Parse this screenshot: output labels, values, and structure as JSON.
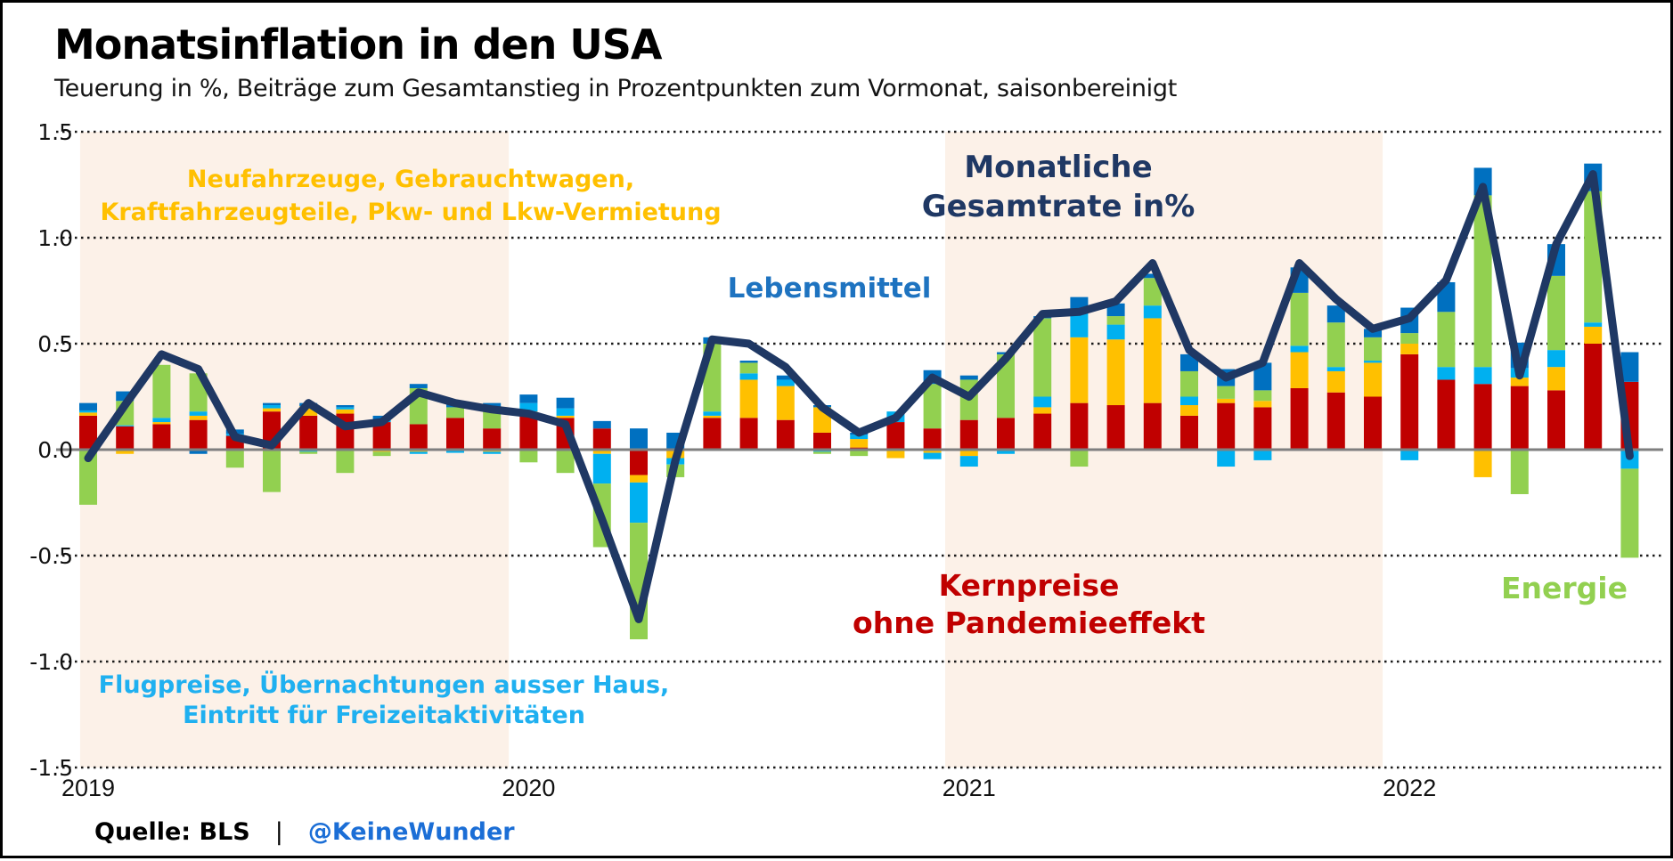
{
  "title": "Monatsinflation in den USA",
  "subtitle": "Teuerung in %, Beiträge zum Gesamtanstieg in Prozentpunkten zum Vormonat, saisonbereinigt",
  "footer": {
    "source_label": "Quelle: BLS",
    "separator": "|",
    "handle": "@KeineWunder"
  },
  "annotations": {
    "vehicles": {
      "line1": "Neufahrzeuge, Gebrauchtwagen,",
      "line2": "Kraftfahrzeugteile, Pkw- und Lkw-Vermietung",
      "color": "#ffc000"
    },
    "total_rate": {
      "line1": "Monatliche",
      "line2": "Gesamtrate in%",
      "color": "#1f3864"
    },
    "food": {
      "label": "Lebensmittel",
      "color": "#1e73c0"
    },
    "core": {
      "line1": "Kernpreise",
      "line2": "ohne Pandemieeffekt",
      "color": "#c00000"
    },
    "energy": {
      "label": "Energie",
      "color": "#92d050"
    },
    "travel": {
      "line1": "Flugpreise, Übernachtungen ausser Haus,",
      "line2": "Eintritt für Freizeitaktivitäten",
      "color": "#00b0f0"
    }
  },
  "palette": {
    "core_red": "#c00000",
    "vehicles_yellow": "#ffc000",
    "travel_skyblue": "#00b0f0",
    "energy_green": "#92d050",
    "food_blue": "#0070c0",
    "total_line_navy": "#1f3864",
    "shade_peach": "#fcf1e8",
    "zero_axis_gray": "#7f7f7f"
  },
  "chart_data": {
    "type": "bar",
    "subtype": "stacked monthly contribution bars with total line",
    "title": "Monatsinflation in den USA",
    "xlabel": "",
    "ylabel": "Teuerung in %",
    "ylim": [
      -1.5,
      1.5
    ],
    "y_ticks": [
      1.5,
      1.0,
      0.5,
      0.0,
      -0.5,
      -1.0,
      -1.5
    ],
    "x_tick_labels": [
      "2019",
      "2020",
      "2021",
      "2022"
    ],
    "x_tick_month_index": [
      0,
      12,
      24,
      36
    ],
    "grid": "dotted horizontal",
    "legend_position": "annotations in plot",
    "months": [
      "2019-01",
      "2019-02",
      "2019-03",
      "2019-04",
      "2019-05",
      "2019-06",
      "2019-07",
      "2019-08",
      "2019-09",
      "2019-10",
      "2019-11",
      "2019-12",
      "2020-01",
      "2020-02",
      "2020-03",
      "2020-04",
      "2020-05",
      "2020-06",
      "2020-07",
      "2020-08",
      "2020-09",
      "2020-10",
      "2020-11",
      "2020-12",
      "2021-01",
      "2021-02",
      "2021-03",
      "2021-04",
      "2021-05",
      "2021-06",
      "2021-07",
      "2021-08",
      "2021-09",
      "2021-10",
      "2021-11",
      "2021-12",
      "2022-01",
      "2022-02",
      "2022-03",
      "2022-04",
      "2022-05",
      "2022-06",
      "2022-07"
    ],
    "series": [
      {
        "name": "Kernpreise ohne Pandemieeffekt",
        "color": "#c00000",
        "values": [
          0.16,
          0.11,
          0.12,
          0.14,
          0.065,
          0.18,
          0.16,
          0.17,
          0.13,
          0.12,
          0.15,
          0.1,
          0.17,
          0.15,
          0.1,
          -0.12,
          0.0,
          0.15,
          0.15,
          0.14,
          0.08,
          0.01,
          0.13,
          0.1,
          0.14,
          0.15,
          0.17,
          0.22,
          0.21,
          0.22,
          0.16,
          0.22,
          0.2,
          0.29,
          0.27,
          0.25,
          0.45,
          0.33,
          0.31,
          0.3,
          0.28,
          0.5,
          0.32
        ]
      },
      {
        "name": "Neufahrzeuge, Gebrauchtwagen, Kraftfahrzeugteile, Pkw- und Lkw-Vermietung",
        "color": "#ffc000",
        "values": [
          0.015,
          -0.02,
          0.01,
          0.02,
          0.0,
          0.015,
          0.045,
          0.02,
          -0.01,
          -0.01,
          0.0,
          -0.01,
          0.01,
          0.01,
          -0.02,
          -0.035,
          -0.04,
          0.01,
          0.18,
          0.16,
          0.12,
          0.04,
          -0.04,
          -0.015,
          -0.03,
          0.0,
          0.03,
          0.31,
          0.31,
          0.4,
          0.05,
          0.02,
          0.03,
          0.17,
          0.1,
          0.16,
          0.05,
          0.0,
          -0.13,
          0.04,
          0.11,
          0.08,
          0.0
        ]
      },
      {
        "name": "Flugpreise, Übernachtungen ausser Haus, Eintritt für Freizeitaktivitäten",
        "color": "#00b0f0",
        "values": [
          0.01,
          0.005,
          0.02,
          0.02,
          0.01,
          0.015,
          -0.01,
          0.01,
          0.01,
          -0.01,
          -0.015,
          -0.01,
          0.04,
          0.035,
          -0.14,
          -0.19,
          -0.03,
          0.02,
          0.03,
          0.03,
          -0.01,
          0.02,
          0.05,
          -0.03,
          -0.05,
          -0.02,
          0.05,
          0.13,
          0.07,
          0.06,
          0.04,
          -0.08,
          -0.05,
          0.03,
          0.02,
          0.01,
          -0.05,
          0.06,
          0.08,
          0.045,
          0.08,
          0.02,
          -0.09
        ]
      },
      {
        "name": "Energie",
        "color": "#92d050",
        "values": [
          -0.26,
          0.115,
          0.25,
          0.18,
          -0.085,
          -0.2,
          -0.01,
          -0.11,
          -0.02,
          0.17,
          0.05,
          0.1,
          -0.06,
          -0.11,
          -0.3,
          -0.55,
          -0.06,
          0.32,
          0.05,
          0.0,
          -0.01,
          -0.03,
          0.0,
          0.21,
          0.19,
          0.3,
          0.37,
          -0.08,
          0.04,
          0.13,
          0.12,
          0.06,
          0.05,
          0.25,
          0.21,
          0.11,
          0.05,
          0.26,
          0.81,
          -0.21,
          0.35,
          0.62,
          -0.42
        ]
      },
      {
        "name": "Lebensmittel",
        "color": "#0070c0",
        "values": [
          0.035,
          0.045,
          0.0,
          -0.02,
          0.02,
          0.01,
          0.015,
          0.01,
          0.02,
          0.02,
          0.015,
          0.02,
          0.04,
          0.05,
          0.035,
          0.1,
          0.08,
          0.03,
          0.01,
          0.02,
          0.01,
          0.01,
          0.0,
          0.065,
          0.02,
          0.01,
          0.01,
          0.06,
          0.06,
          0.02,
          0.08,
          0.08,
          0.13,
          0.12,
          0.08,
          0.04,
          0.12,
          0.14,
          0.13,
          0.12,
          0.15,
          0.13,
          0.14
        ]
      }
    ],
    "line_series": {
      "name": "Monatliche Gesamtrate in%",
      "color": "#1f3864",
      "values": [
        -0.04,
        0.21,
        0.45,
        0.38,
        0.06,
        0.02,
        0.22,
        0.11,
        0.13,
        0.27,
        0.22,
        0.19,
        0.17,
        0.12,
        -0.33,
        -0.8,
        -0.05,
        0.52,
        0.5,
        0.39,
        0.2,
        0.08,
        0.15,
        0.34,
        0.25,
        0.43,
        0.64,
        0.65,
        0.7,
        0.88,
        0.47,
        0.34,
        0.41,
        0.88,
        0.71,
        0.57,
        0.62,
        0.8,
        1.24,
        0.35,
        0.97,
        1.3,
        -0.03
      ]
    },
    "shaded_regions_month_index": [
      [
        -0.22,
        11.46
      ],
      [
        23.35,
        35.27
      ]
    ],
    "shade_color": "#fcf1e8"
  }
}
